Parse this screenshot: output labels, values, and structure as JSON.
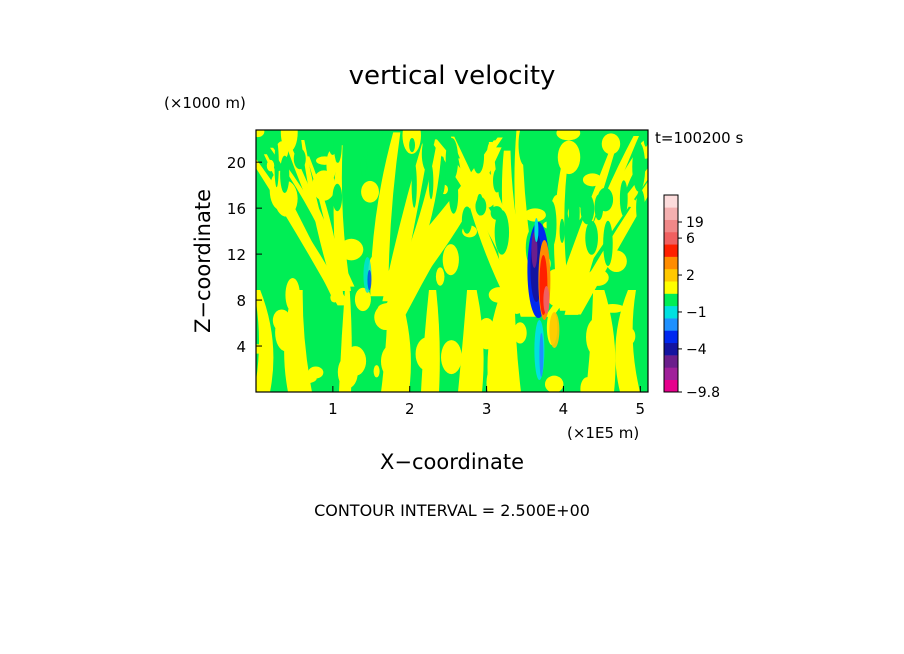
{
  "chart_data": {
    "type": "heatmap",
    "title": "vertical velocity",
    "xlabel": "X−coordinate",
    "ylabel": "Z−coordinate",
    "x_unit": "(×1E5 m)",
    "y_unit": "(×1000 m)",
    "time_label": "t=100200 s",
    "footer": "CONTOUR INTERVAL = 2.500E+00",
    "xlim": [
      0,
      5.1
    ],
    "ylim": [
      0,
      22.8
    ],
    "x_ticks": [
      "1",
      "2",
      "3",
      "4",
      "5"
    ],
    "y_ticks": [
      "4",
      "8",
      "12",
      "16",
      "20"
    ],
    "colorbar": {
      "labels": [
        "19",
        "6",
        "2",
        "−1",
        "−4",
        "−9.8"
      ],
      "levels": [
        {
          "value": -9.8,
          "color": "#e6008c"
        },
        {
          "value": -7.5,
          "color": "#a0209a"
        },
        {
          "value": -5,
          "color": "#6b1e8c"
        },
        {
          "value": -4,
          "color": "#1414a0"
        },
        {
          "value": -2.5,
          "color": "#0028f0"
        },
        {
          "value": -1.5,
          "color": "#1e90ff"
        },
        {
          "value": -1,
          "color": "#00e0e0"
        },
        {
          "value": 0,
          "color": "#00ee55"
        },
        {
          "value": 1,
          "color": "#ffff00"
        },
        {
          "value": 2,
          "color": "#ffc800"
        },
        {
          "value": 3,
          "color": "#ff8c00"
        },
        {
          "value": 5,
          "color": "#ff2000"
        },
        {
          "value": 6,
          "color": "#f06060"
        },
        {
          "value": 10,
          "color": "#f08888"
        },
        {
          "value": 15,
          "color": "#f4b0b0"
        },
        {
          "value": 19,
          "color": "#fcdcdc"
        }
      ]
    },
    "updraft_centers_x": [
      1.45,
      3.7
    ]
  }
}
